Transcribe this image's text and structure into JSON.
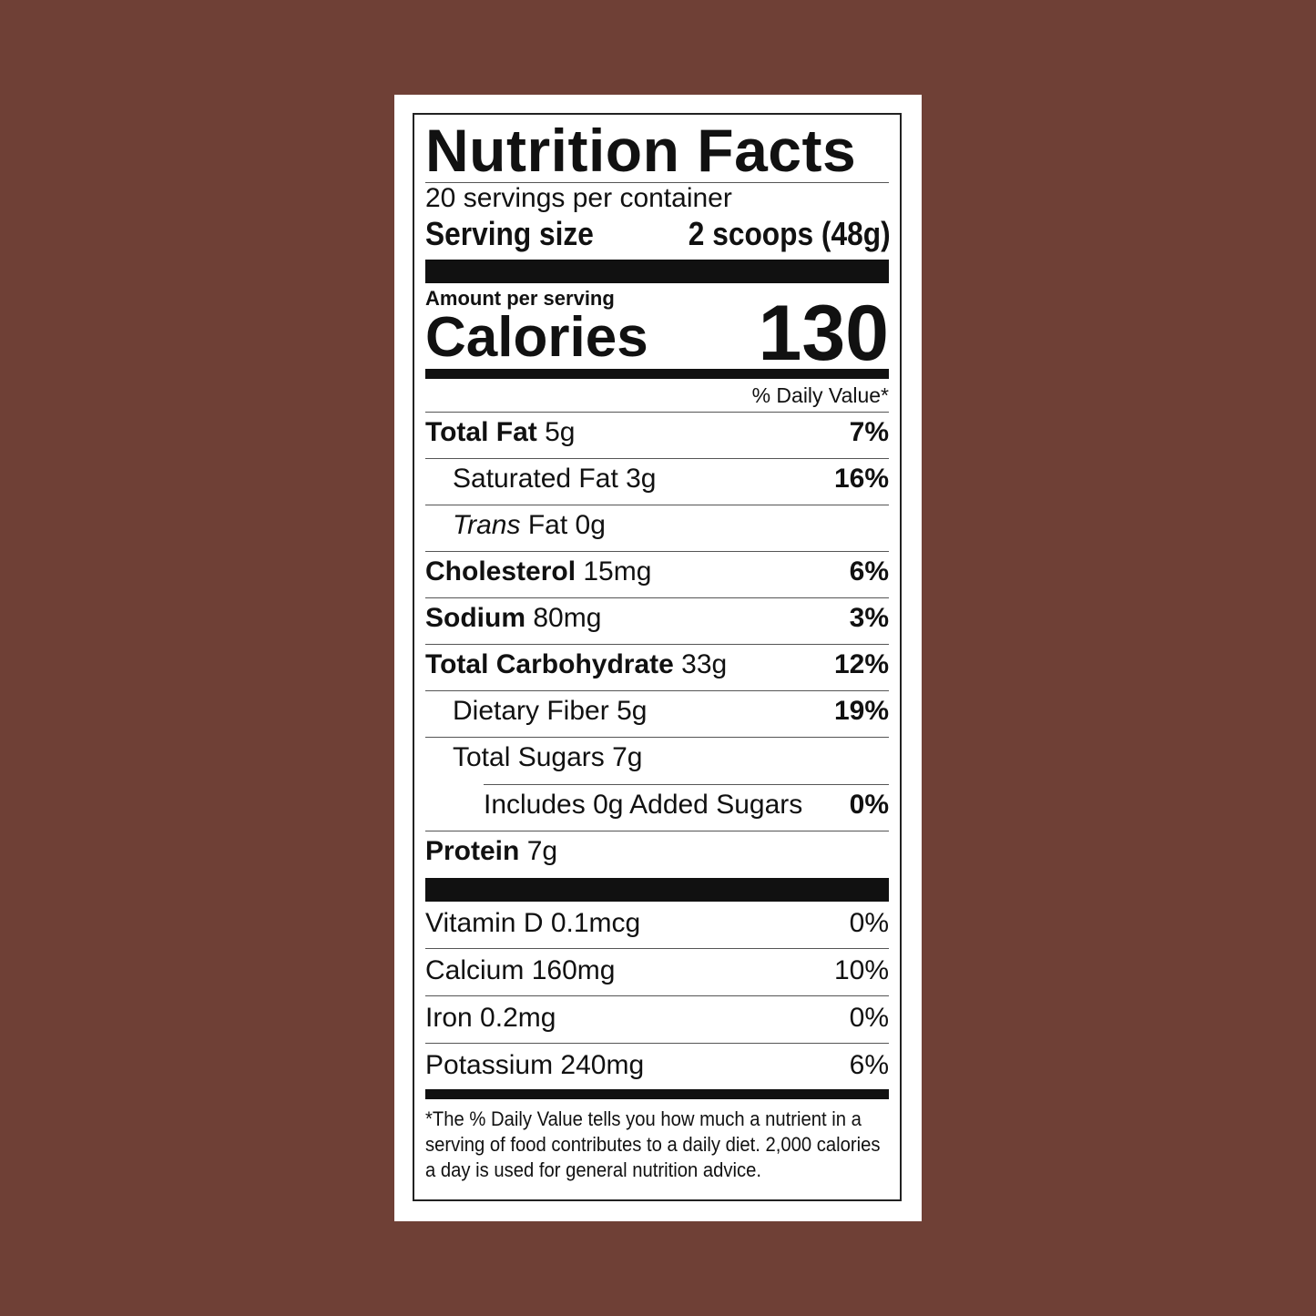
{
  "title": "Nutrition Facts",
  "servings": "20 servings per container",
  "serving_size_label": "Serving size",
  "serving_size": "2 scoops (48g)",
  "amount_per_serving": "Amount per serving",
  "calories_label": "Calories",
  "calories": "130",
  "daily_value_header": "% Daily Value*",
  "nutrients": [
    {
      "name": "Total Fat",
      "amount": "5g",
      "dv": "7%"
    },
    {
      "name": "Saturated Fat",
      "amount": "3g",
      "dv": "16%"
    },
    {
      "name": "Trans",
      "name2": "Fat",
      "amount": "0g",
      "dv": ""
    },
    {
      "name": "Cholesterol",
      "amount": "15mg",
      "dv": "6%"
    },
    {
      "name": "Sodium",
      "amount": "80mg",
      "dv": "3%"
    },
    {
      "name": "Total Carbohydrate",
      "amount": "33g",
      "dv": "12%"
    },
    {
      "name": "Dietary Fiber",
      "amount": "5g",
      "dv": "19%"
    },
    {
      "name": "Total Sugars",
      "amount": "7g",
      "dv": ""
    },
    {
      "name": "Includes 0g Added Sugars",
      "amount": "",
      "dv": "0%"
    },
    {
      "name": "Protein",
      "amount": "7g",
      "dv": ""
    }
  ],
  "vitamins": [
    {
      "name": "Vitamin D",
      "amount": "0.1mcg",
      "dv": "0%"
    },
    {
      "name": "Calcium",
      "amount": "160mg",
      "dv": "10%"
    },
    {
      "name": "Iron",
      "amount": "0.2mg",
      "dv": "0%"
    },
    {
      "name": "Potassium",
      "amount": "240mg",
      "dv": "6%"
    }
  ],
  "footnote": "*The % Daily Value tells you how much a nutrient in a serving of food contributes to a daily diet. 2,000 calories a day is used for general nutrition advice."
}
